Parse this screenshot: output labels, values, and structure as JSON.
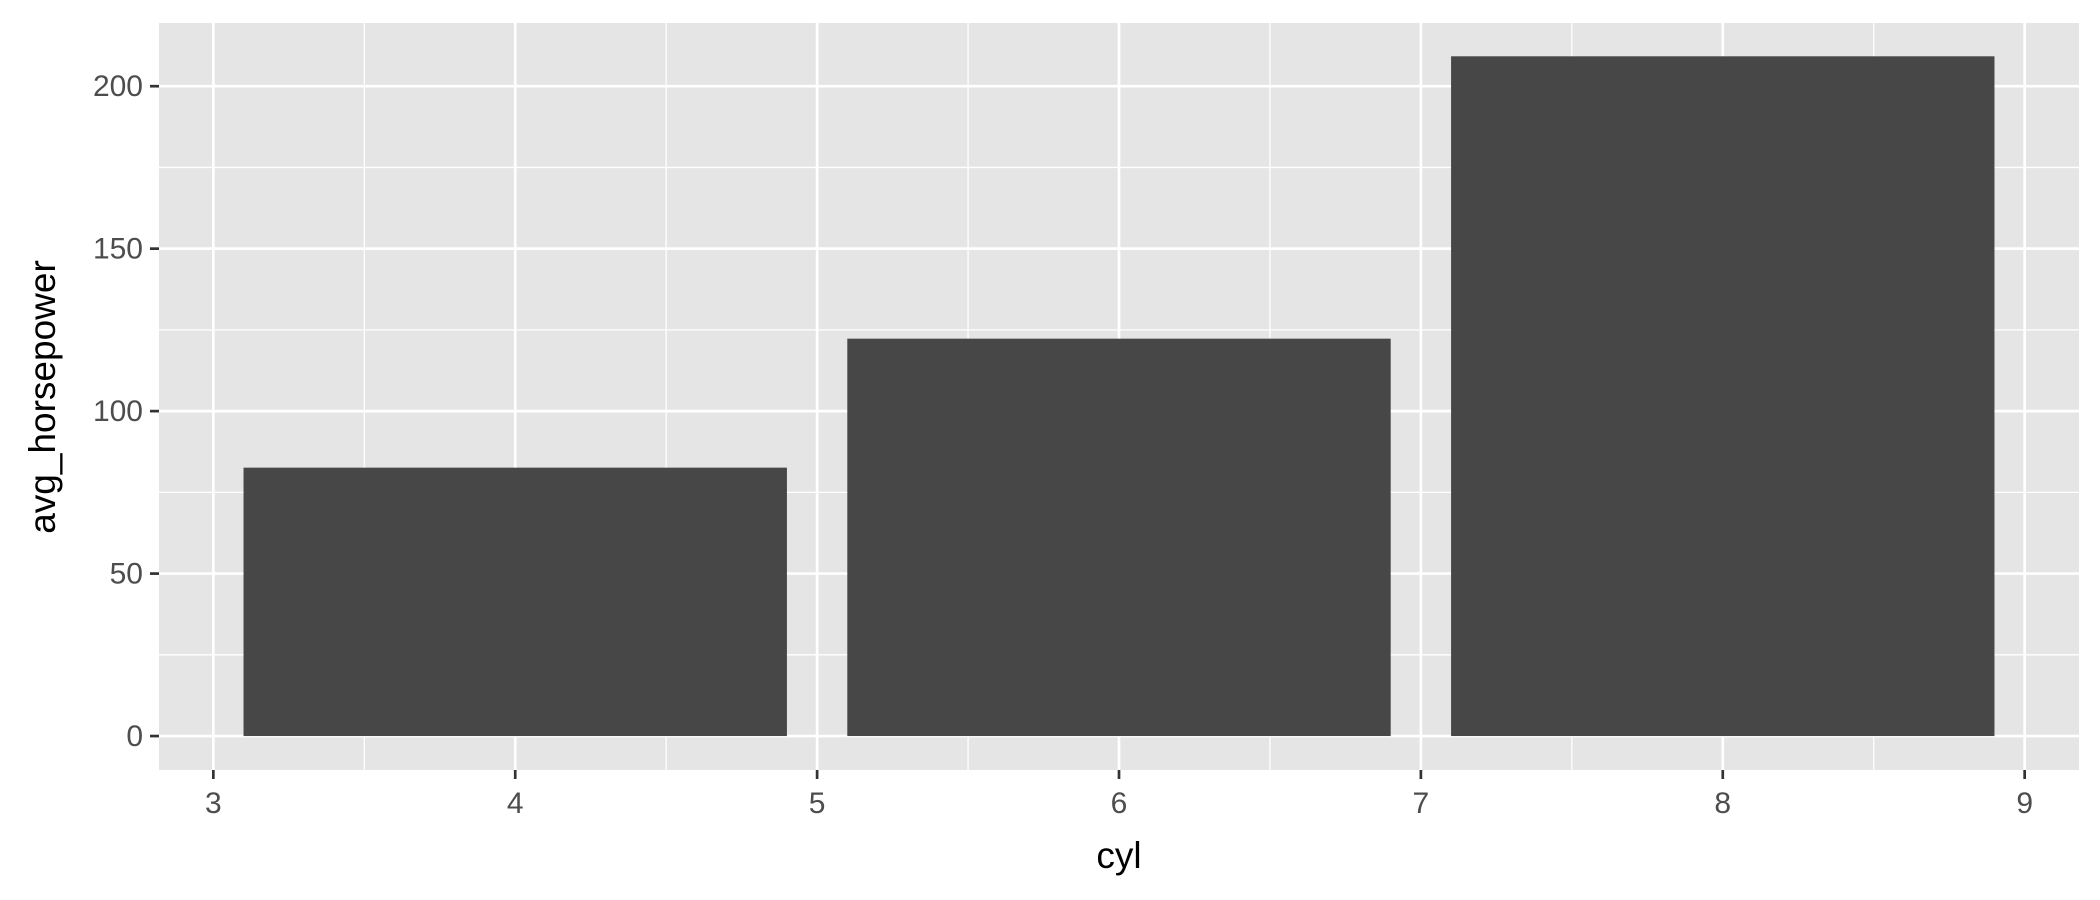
{
  "chart_data": {
    "type": "bar",
    "xlabel": "cyl",
    "ylabel": "avg_horsepower",
    "x_ticks": [
      3,
      4,
      5,
      6,
      7,
      8,
      9
    ],
    "y_ticks": [
      0,
      50,
      100,
      150,
      200
    ],
    "xlim": [
      2.82,
      9.18
    ],
    "ylim": [
      -10.45,
      219.45
    ],
    "bar_width": 1.8,
    "series": [
      {
        "x": [
          4,
          6,
          8
        ],
        "values": [
          82.6,
          122.3,
          209.2
        ]
      }
    ],
    "grid": true,
    "legend": "none",
    "colors": {
      "panel_background": "#e5e5e5",
      "grid_line": "#ffffff",
      "bar_fill": "#474747",
      "tick_text": "#4d4d4d",
      "tick_mark": "#333333",
      "title_text": "#000000"
    }
  }
}
